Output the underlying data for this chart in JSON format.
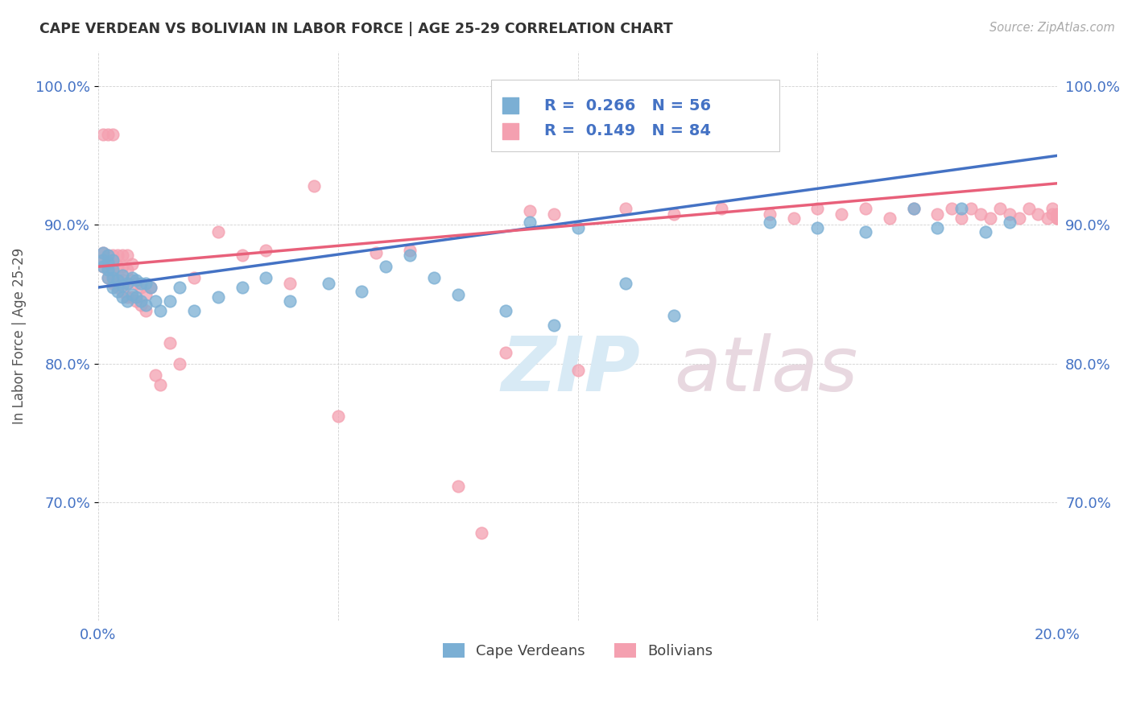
{
  "title": "CAPE VERDEAN VS BOLIVIAN IN LABOR FORCE | AGE 25-29 CORRELATION CHART",
  "source": "Source: ZipAtlas.com",
  "ylabel": "In Labor Force | Age 25-29",
  "xlim": [
    0.0,
    0.2
  ],
  "ylim": [
    0.615,
    1.025
  ],
  "yticks": [
    0.7,
    0.8,
    0.9,
    1.0
  ],
  "ytick_labels": [
    "70.0%",
    "80.0%",
    "90.0%",
    "100.0%"
  ],
  "xticks": [
    0.0,
    0.05,
    0.1,
    0.15,
    0.2
  ],
  "xtick_labels": [
    "0.0%",
    "",
    "",
    "",
    "20.0%"
  ],
  "legend_label_blue": "Cape Verdeans",
  "legend_label_pink": "Bolivians",
  "R_blue": 0.266,
  "N_blue": 56,
  "R_pink": 0.149,
  "N_pink": 84,
  "blue_color": "#7BAFD4",
  "pink_color": "#F4A0B0",
  "blue_line_color": "#4472C4",
  "pink_line_color": "#E8607A",
  "watermark_zip": "ZIP",
  "watermark_atlas": "atlas",
  "blue_scatter_x": [
    0.001,
    0.001,
    0.001,
    0.002,
    0.002,
    0.002,
    0.002,
    0.003,
    0.003,
    0.003,
    0.003,
    0.004,
    0.004,
    0.005,
    0.005,
    0.005,
    0.006,
    0.006,
    0.007,
    0.007,
    0.008,
    0.008,
    0.009,
    0.009,
    0.01,
    0.01,
    0.011,
    0.012,
    0.013,
    0.015,
    0.017,
    0.02,
    0.025,
    0.03,
    0.035,
    0.04,
    0.048,
    0.055,
    0.06,
    0.065,
    0.07,
    0.075,
    0.085,
    0.09,
    0.095,
    0.1,
    0.11,
    0.12,
    0.14,
    0.15,
    0.16,
    0.17,
    0.175,
    0.18,
    0.185,
    0.19
  ],
  "blue_scatter_y": [
    0.87,
    0.875,
    0.88,
    0.862,
    0.868,
    0.873,
    0.878,
    0.855,
    0.862,
    0.868,
    0.875,
    0.852,
    0.86,
    0.848,
    0.856,
    0.864,
    0.845,
    0.858,
    0.85,
    0.862,
    0.848,
    0.86,
    0.845,
    0.858,
    0.842,
    0.858,
    0.855,
    0.845,
    0.838,
    0.845,
    0.855,
    0.838,
    0.848,
    0.855,
    0.862,
    0.845,
    0.858,
    0.852,
    0.87,
    0.878,
    0.862,
    0.85,
    0.838,
    0.902,
    0.828,
    0.898,
    0.858,
    0.835,
    0.902,
    0.898,
    0.895,
    0.912,
    0.898,
    0.912,
    0.895,
    0.902
  ],
  "pink_scatter_x": [
    0.001,
    0.001,
    0.001,
    0.001,
    0.002,
    0.002,
    0.002,
    0.002,
    0.002,
    0.003,
    0.003,
    0.003,
    0.003,
    0.003,
    0.004,
    0.004,
    0.004,
    0.004,
    0.005,
    0.005,
    0.005,
    0.005,
    0.006,
    0.006,
    0.006,
    0.006,
    0.007,
    0.007,
    0.007,
    0.008,
    0.008,
    0.009,
    0.009,
    0.01,
    0.01,
    0.011,
    0.012,
    0.013,
    0.015,
    0.017,
    0.02,
    0.025,
    0.03,
    0.035,
    0.04,
    0.045,
    0.05,
    0.058,
    0.065,
    0.075,
    0.08,
    0.085,
    0.09,
    0.095,
    0.1,
    0.11,
    0.12,
    0.13,
    0.14,
    0.145,
    0.15,
    0.155,
    0.16,
    0.165,
    0.17,
    0.175,
    0.178,
    0.18,
    0.182,
    0.184,
    0.186,
    0.188,
    0.19,
    0.192,
    0.194,
    0.196,
    0.198,
    0.199,
    0.199,
    0.2,
    0.2,
    0.2,
    0.2,
    0.2
  ],
  "pink_scatter_y": [
    0.87,
    0.875,
    0.88,
    0.965,
    0.862,
    0.868,
    0.873,
    0.878,
    0.965,
    0.858,
    0.865,
    0.872,
    0.878,
    0.965,
    0.855,
    0.862,
    0.87,
    0.878,
    0.852,
    0.86,
    0.87,
    0.878,
    0.848,
    0.858,
    0.868,
    0.878,
    0.848,
    0.86,
    0.872,
    0.845,
    0.858,
    0.842,
    0.855,
    0.838,
    0.85,
    0.855,
    0.792,
    0.785,
    0.815,
    0.8,
    0.862,
    0.895,
    0.878,
    0.882,
    0.858,
    0.928,
    0.762,
    0.88,
    0.882,
    0.712,
    0.678,
    0.808,
    0.91,
    0.908,
    0.795,
    0.912,
    0.908,
    0.912,
    0.908,
    0.905,
    0.912,
    0.908,
    0.912,
    0.905,
    0.912,
    0.908,
    0.912,
    0.905,
    0.912,
    0.908,
    0.905,
    0.912,
    0.908,
    0.905,
    0.912,
    0.908,
    0.905,
    0.912,
    0.908,
    0.905,
    0.905,
    0.908,
    0.905,
    0.908
  ]
}
